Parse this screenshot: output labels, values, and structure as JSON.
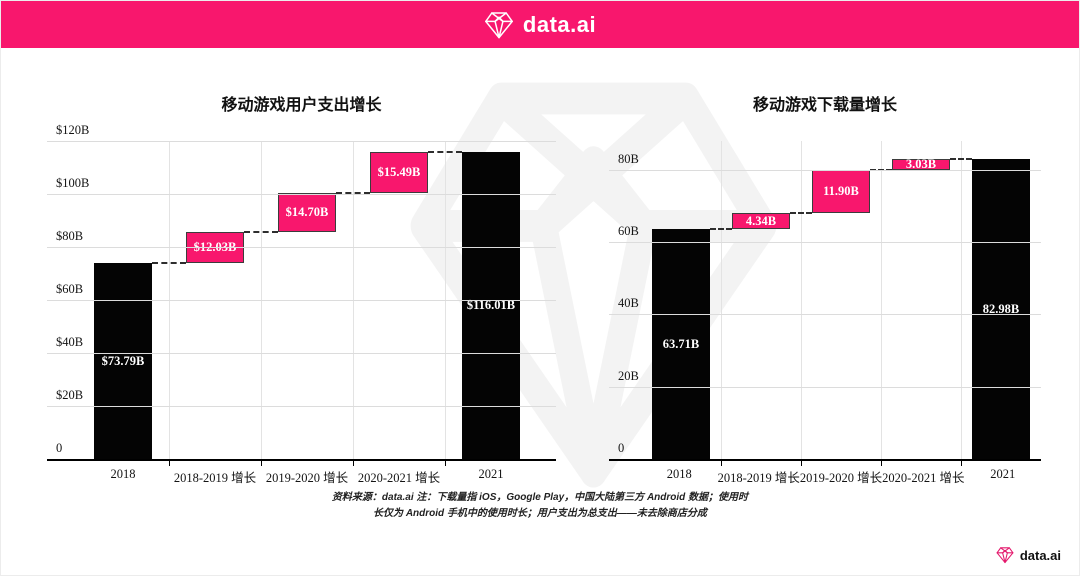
{
  "header": {
    "brand": "data.ai"
  },
  "footer": {
    "brand": "data.ai",
    "note": "资料来源：data.ai 注：下载量指 iOS，Google Play，中国大陆第三方 Android 数据；使用时长仅为 Android 手机中的使用时长；用户支出为总支出——未去除商店分成"
  },
  "colors": {
    "accent": "#f8176d",
    "bar": "#040404"
  },
  "icons": {
    "brand": "diamond-gem-icon",
    "watermark": "diamond-gem-icon"
  },
  "chart_data": [
    {
      "type": "bar",
      "variant": "waterfall",
      "title": "移动游戏用户支出增长",
      "categories": [
        "2018",
        "2018-2019 增长",
        "2019-2020 增长",
        "2020-2021 增长",
        "2021"
      ],
      "values": [
        73.79,
        12.03,
        14.7,
        15.49,
        116.01
      ],
      "labels": [
        "$73.79B",
        "$12.03B",
        "$14.70B",
        "$15.49B",
        "$116.01B"
      ],
      "kinds": [
        "total",
        "delta",
        "delta",
        "delta",
        "total"
      ],
      "y_ticks": [
        {
          "value": 120,
          "label": "$120B"
        },
        {
          "value": 100,
          "label": "$100B"
        },
        {
          "value": 80,
          "label": "$80B"
        },
        {
          "value": 60,
          "label": "$60B"
        },
        {
          "value": 40,
          "label": "$40B"
        },
        {
          "value": 20,
          "label": "$20B"
        },
        {
          "value": 0,
          "label": "0"
        }
      ],
      "ylim": [
        0,
        120
      ],
      "grid": true,
      "legend": false,
      "xlabel": "",
      "ylabel": ""
    },
    {
      "type": "bar",
      "variant": "waterfall",
      "title": "移动游戏下载量增长",
      "categories": [
        "2018",
        "2018-2019 增长",
        "2019-2020 增长",
        "2020-2021 增长",
        "2021"
      ],
      "values": [
        63.71,
        4.34,
        11.9,
        3.03,
        82.98
      ],
      "labels": [
        "63.71B",
        "4.34B",
        "11.90B",
        "3.03B",
        "82.98B"
      ],
      "kinds": [
        "total",
        "delta",
        "delta",
        "delta",
        "total"
      ],
      "y_ticks": [
        {
          "value": 80,
          "label": "80B"
        },
        {
          "value": 60,
          "label": "60B"
        },
        {
          "value": 40,
          "label": "40B"
        },
        {
          "value": 20,
          "label": "20B"
        },
        {
          "value": 0,
          "label": "0"
        }
      ],
      "ylim": [
        0,
        88
      ],
      "grid": true,
      "legend": false,
      "xlabel": "",
      "ylabel": ""
    }
  ]
}
